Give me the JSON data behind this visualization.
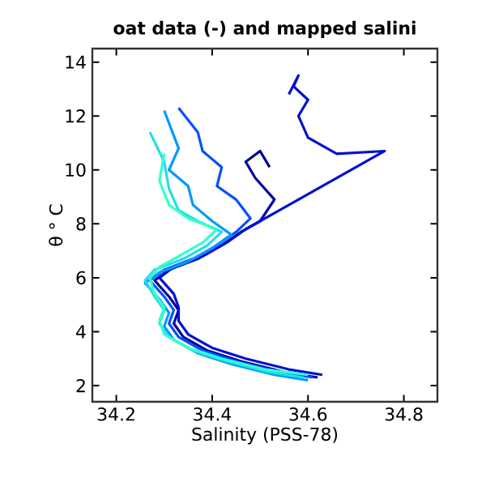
{
  "chart_data": {
    "type": "line",
    "title": "oat data (-) and mapped salini",
    "xlabel": "Salinity (PSS-78)",
    "ylabel": "θ ° C",
    "xlim": [
      34.15,
      34.87
    ],
    "ylim": [
      1.4,
      14.5
    ],
    "xticks": [
      34.2,
      34.4,
      34.6,
      34.8
    ],
    "yticks": [
      2,
      4,
      6,
      8,
      10,
      12,
      14
    ],
    "grid": false,
    "series": [
      {
        "color": "#0000a0",
        "x": [
          34.62,
          34.55,
          34.46,
          34.39,
          34.34,
          34.32,
          34.33,
          34.31,
          34.28,
          34.31,
          34.37,
          34.42,
          34.46,
          34.5,
          34.53,
          34.49,
          34.47,
          34.5,
          34.52
        ],
        "values": [
          2.3,
          2.5,
          2.9,
          3.3,
          3.8,
          4.3,
          4.8,
          5.3,
          5.9,
          6.3,
          6.7,
          7.2,
          7.7,
          8.1,
          8.9,
          9.7,
          10.3,
          10.7,
          10.1
        ]
      },
      {
        "color": "#0010d0",
        "x": [
          34.63,
          34.56,
          34.47,
          34.4,
          34.35,
          34.33,
          34.33,
          34.32,
          34.29,
          34.32,
          34.38,
          34.43,
          34.47,
          34.52,
          34.58,
          34.64,
          34.7,
          34.76,
          34.66,
          34.6,
          34.58,
          34.6,
          34.57,
          34.58,
          34.56
        ],
        "values": [
          2.4,
          2.6,
          3.0,
          3.4,
          3.9,
          4.4,
          4.9,
          5.4,
          6.0,
          6.4,
          6.8,
          7.3,
          7.8,
          8.3,
          8.9,
          9.5,
          10.1,
          10.7,
          10.6,
          11.2,
          12.0,
          12.6,
          13.1,
          13.5,
          12.8
        ]
      },
      {
        "color": "#0050ff",
        "x": [
          34.61,
          34.54,
          34.45,
          34.38,
          34.33,
          34.31,
          34.32,
          34.3,
          34.27,
          34.3,
          34.36,
          34.41,
          34.45,
          34.48,
          34.45,
          34.41,
          34.42,
          34.38,
          34.37,
          34.33
        ],
        "values": [
          2.3,
          2.5,
          2.9,
          3.3,
          3.8,
          4.3,
          4.8,
          5.3,
          5.9,
          6.3,
          6.7,
          7.2,
          7.7,
          8.2,
          8.9,
          9.4,
          10.1,
          10.7,
          11.4,
          12.3
        ]
      },
      {
        "color": "#0099ff",
        "x": [
          34.6,
          34.53,
          34.44,
          34.37,
          34.32,
          34.3,
          34.31,
          34.29,
          34.26,
          34.29,
          34.35,
          34.4,
          34.44,
          34.4,
          34.36,
          34.35,
          34.31,
          34.33,
          34.3
        ],
        "values": [
          2.2,
          2.4,
          2.8,
          3.2,
          3.7,
          4.2,
          4.7,
          5.2,
          5.8,
          6.2,
          6.6,
          7.1,
          7.6,
          8.1,
          8.7,
          9.4,
          10.0,
          10.8,
          12.2
        ]
      },
      {
        "color": "#22ddee",
        "x": [
          34.59,
          34.52,
          34.43,
          34.36,
          34.31,
          34.29,
          34.3,
          34.28,
          34.26,
          34.28,
          34.34,
          34.39,
          34.42,
          34.37,
          34.33,
          34.31,
          34.3,
          34.27
        ],
        "values": [
          2.3,
          2.5,
          2.9,
          3.3,
          3.8,
          4.3,
          4.8,
          5.3,
          5.9,
          6.3,
          6.7,
          7.2,
          7.7,
          8.1,
          8.5,
          9.3,
          10.3,
          11.4
        ]
      },
      {
        "color": "#33ffcc",
        "x": [
          34.6,
          34.51,
          34.42,
          34.35,
          34.3,
          34.29,
          34.3,
          34.28,
          34.27,
          34.29,
          34.33,
          34.38,
          34.41,
          34.35,
          34.31,
          34.29,
          34.3
        ],
        "values": [
          2.4,
          2.6,
          3.0,
          3.4,
          3.9,
          4.4,
          4.9,
          5.4,
          6.0,
          6.4,
          6.8,
          7.3,
          7.8,
          8.2,
          8.7,
          9.6,
          10.6
        ]
      }
    ]
  }
}
